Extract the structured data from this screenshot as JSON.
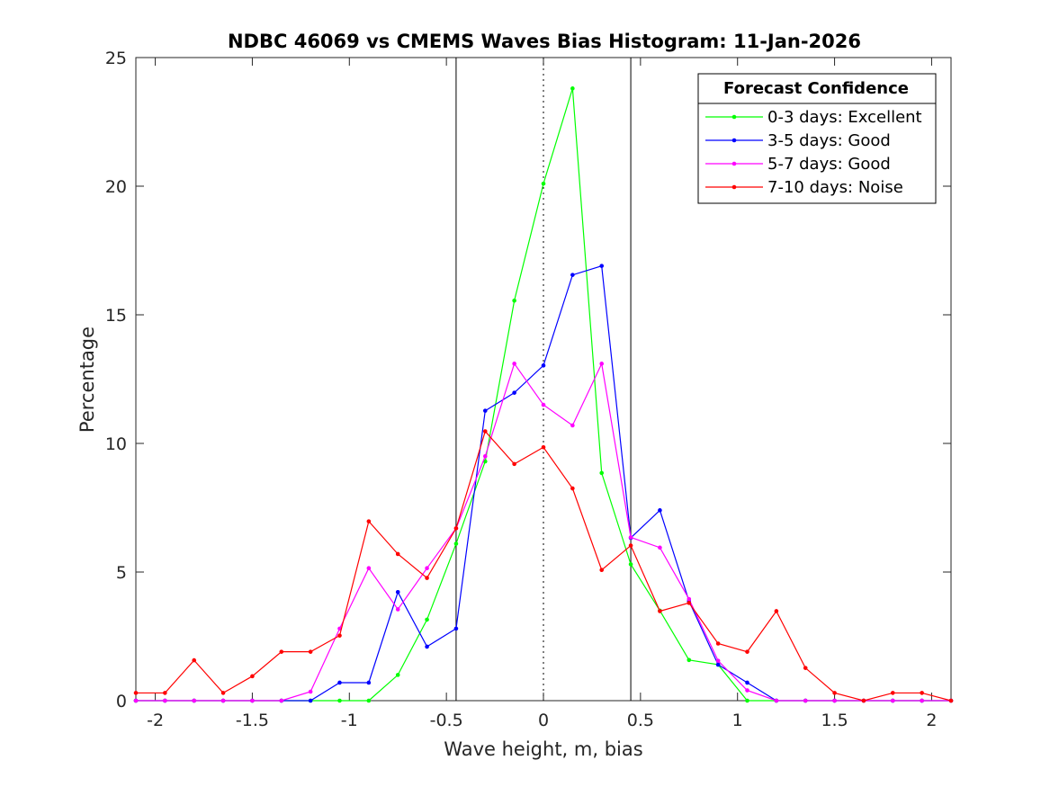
{
  "chart_data": {
    "type": "line",
    "title": "NDBC 46069 vs CMEMS Waves Bias Histogram: 11-Jan-2026",
    "xlabel": "Wave height, m, bias",
    "ylabel": "Percentage",
    "xlim": [
      -2.1,
      2.1
    ],
    "ylim": [
      0,
      25
    ],
    "xticks": [
      -2,
      -1.5,
      -1,
      -0.5,
      0,
      0.5,
      1,
      1.5,
      2
    ],
    "xtick_labels": [
      "-2",
      "-1.5",
      "-1",
      "-0.5",
      "0",
      "0.5",
      "1",
      "1.5",
      "2"
    ],
    "yticks": [
      0,
      5,
      10,
      15,
      20,
      25
    ],
    "ytick_labels": [
      "0",
      "5",
      "10",
      "15",
      "20",
      "25"
    ],
    "grid": false,
    "reference_lines": [
      {
        "x": -0.45,
        "style": "solid"
      },
      {
        "x": 0,
        "style": "dotted"
      },
      {
        "x": 0.45,
        "style": "solid"
      }
    ],
    "legend": {
      "title": "Forecast Confidence",
      "location": "top-right"
    },
    "x": [
      -2.1,
      -1.95,
      -1.8,
      -1.65,
      -1.5,
      -1.35,
      -1.2,
      -1.05,
      -0.9,
      -0.75,
      -0.6,
      -0.45,
      -0.3,
      -0.15,
      0,
      0.15,
      0.3,
      0.45,
      0.6,
      0.75,
      0.9,
      1.05,
      1.2,
      1.35,
      1.5,
      1.65,
      1.8,
      1.95,
      2.1
    ],
    "series": [
      {
        "name": "0-3 days: Excellent",
        "color": "#00ff00",
        "values": [
          0,
          0,
          0,
          0,
          0,
          0,
          0,
          0,
          0,
          1.0,
          3.15,
          6.1,
          9.3,
          15.55,
          20.1,
          23.8,
          8.85,
          5.3,
          3.5,
          1.58,
          1.4,
          0,
          0,
          0,
          0,
          0,
          0,
          0,
          0
        ]
      },
      {
        "name": "3-5 days: Good",
        "color": "#0000ff",
        "values": [
          0,
          0,
          0,
          0,
          0,
          0,
          0,
          0.7,
          0.7,
          4.22,
          2.1,
          2.8,
          11.27,
          11.97,
          13.03,
          16.55,
          16.9,
          6.33,
          7.4,
          3.87,
          1.4,
          0.7,
          0,
          0,
          0,
          0,
          0,
          0,
          0
        ]
      },
      {
        "name": "5-7 days: Good",
        "color": "#ff00ff",
        "values": [
          0,
          0,
          0,
          0,
          0,
          0,
          0.35,
          2.8,
          5.15,
          3.55,
          5.15,
          6.7,
          9.5,
          13.1,
          11.5,
          10.7,
          13.1,
          6.35,
          5.95,
          3.95,
          1.55,
          0.4,
          0,
          0,
          0,
          0,
          0,
          0,
          0
        ]
      },
      {
        "name": "7-10 days: Noise",
        "color": "#ff0000",
        "values": [
          0.3,
          0.3,
          1.57,
          0.3,
          0.95,
          1.9,
          1.9,
          2.53,
          6.97,
          5.7,
          4.77,
          6.7,
          10.47,
          9.2,
          9.85,
          8.25,
          5.08,
          6.03,
          3.48,
          3.8,
          2.22,
          1.9,
          3.48,
          1.27,
          0.3,
          0,
          0.3,
          0.3,
          0
        ]
      }
    ]
  }
}
